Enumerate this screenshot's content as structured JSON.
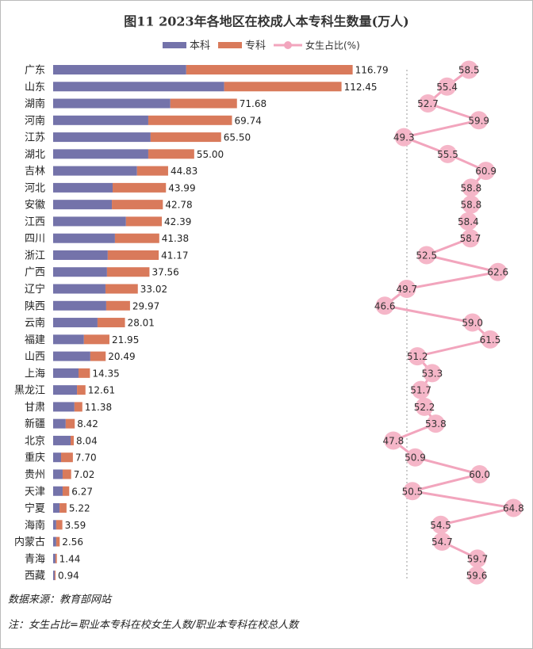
{
  "chart_data": {
    "type": "bar",
    "orientation": "horizontal",
    "stacked": true,
    "title": "图11  2023年各地区在校成人本专科生数量(万人)",
    "categories": [
      "广东",
      "山东",
      "湖南",
      "河南",
      "江苏",
      "湖北",
      "吉林",
      "河北",
      "安徽",
      "江西",
      "四川",
      "浙江",
      "广西",
      "辽宁",
      "陕西",
      "云南",
      "福建",
      "山西",
      "上海",
      "黑龙江",
      "甘肃",
      "新疆",
      "北京",
      "重庆",
      "贵州",
      "天津",
      "宁夏",
      "海南",
      "内蒙古",
      "青海",
      "西藏"
    ],
    "series": [
      {
        "name": "本科",
        "color": "#7473aa",
        "values": [
          51.9,
          66.7,
          45.7,
          37.1,
          38.0,
          37.1,
          32.7,
          23.2,
          22.9,
          28.4,
          24.1,
          21.3,
          21.0,
          20.4,
          20.7,
          17.3,
          12.0,
          14.5,
          9.9,
          9.3,
          8.3,
          4.9,
          6.8,
          3.1,
          3.7,
          3.7,
          2.5,
          1.2,
          1.2,
          0.9,
          0.6
        ]
      },
      {
        "name": "专科",
        "color": "#d97a5b",
        "values": [
          64.89,
          45.75,
          25.98,
          32.64,
          27.5,
          17.9,
          12.13,
          20.79,
          19.88,
          13.99,
          17.28,
          19.87,
          16.56,
          12.62,
          9.27,
          10.71,
          9.95,
          5.99,
          4.45,
          3.31,
          3.08,
          3.52,
          1.24,
          4.6,
          3.32,
          2.57,
          2.72,
          2.39,
          1.36,
          0.54,
          0.34
        ]
      }
    ],
    "total_values": [
      116.79,
      112.45,
      71.68,
      69.74,
      65.5,
      55,
      44.83,
      43.99,
      42.78,
      42.39,
      41.38,
      41.17,
      37.56,
      33.02,
      29.97,
      28.01,
      21.95,
      20.49,
      14.35,
      12.61,
      11.38,
      8.42,
      8.04,
      7.7,
      7.02,
      6.27,
      5.22,
      3.59,
      2.56,
      1.44,
      0.94
    ],
    "total_labels": [
      "116.79",
      "112.45",
      "71.68",
      "69.74",
      "65.50",
      "55.00",
      "44.83",
      "43.99",
      "42.78",
      "42.39",
      "41.38",
      "41.17",
      "37.56",
      "33.02",
      "29.97",
      "28.01",
      "21.95",
      "20.49",
      "14.35",
      "12.61",
      "11.38",
      "8.42",
      "8.04",
      "7.70",
      "7.02",
      "6.27",
      "5.22",
      "3.59",
      "2.56",
      "1.44",
      "0.94"
    ],
    "xlim": [
      0,
      120
    ],
    "ratio": {
      "type": "line",
      "name": "女生占比(%)",
      "color": "#f2a5bd",
      "values": [
        58.5,
        55.4,
        52.7,
        59.9,
        49.3,
        55.5,
        60.9,
        58.8,
        58.8,
        58.4,
        58.7,
        52.5,
        62.6,
        49.7,
        46.6,
        59,
        61.5,
        51.2,
        53.3,
        51.7,
        52.2,
        53.8,
        47.8,
        50.9,
        60,
        50.5,
        64.8,
        54.5,
        54.7,
        59.7,
        59.6
      ],
      "value_labels": [
        "58.5",
        "55.4",
        "52.7",
        "59.9",
        "49.3",
        "55.5",
        "60.9",
        "58.8",
        "58.8",
        "58.4",
        "58.7",
        "52.5",
        "62.6",
        "49.7",
        "46.6",
        "59.0",
        "61.5",
        "51.2",
        "53.3",
        "51.7",
        "52.2",
        "53.8",
        "47.8",
        "50.9",
        "60.0",
        "50.5",
        "64.8",
        "54.5",
        "54.7",
        "59.7",
        "59.6"
      ],
      "xlim": [
        44,
        67
      ]
    },
    "legend": "top",
    "source": "数据来源：教育部网站",
    "note": "注：女生占比=职业本专科在校女生人数/职业本专科在校总人数"
  }
}
